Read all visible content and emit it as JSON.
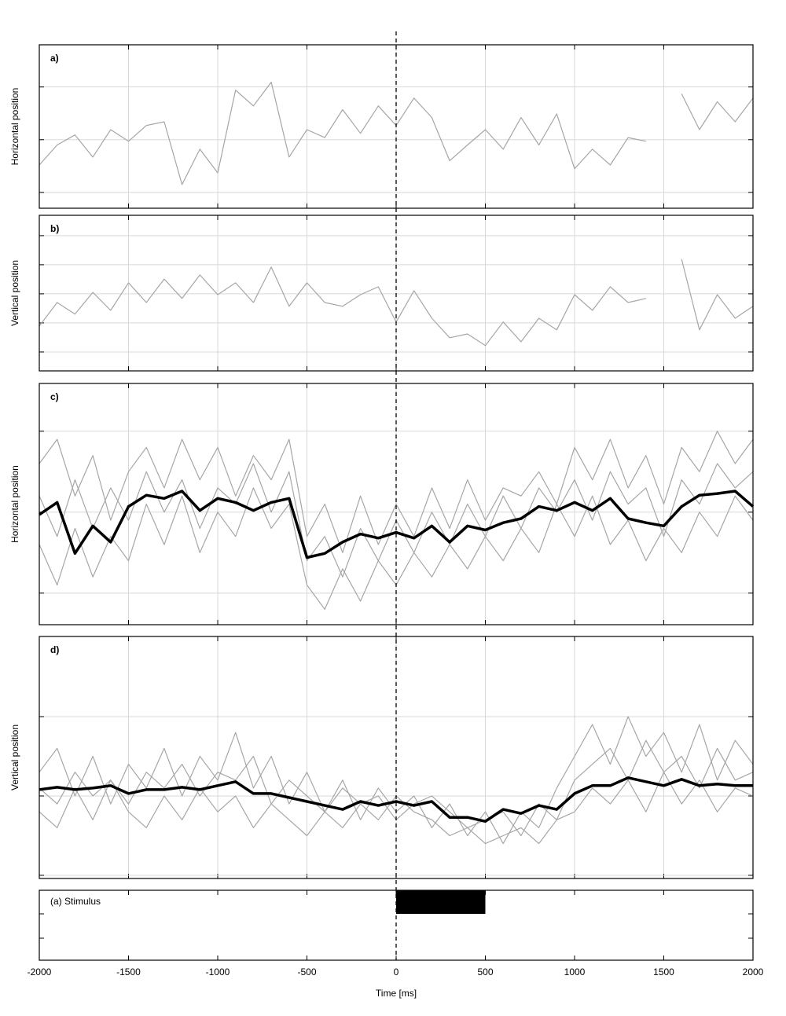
{
  "chart_data": [
    {
      "type": "line",
      "title": "a)",
      "y_label": "Horizontal position",
      "x": [
        -2000,
        -1900,
        -1800,
        -1700,
        -1600,
        -1500,
        -1400,
        -1300,
        -1200,
        -1100,
        -1000,
        -900,
        -800,
        -700,
        -600,
        -500,
        -400,
        -300,
        -200,
        -100,
        0,
        100,
        200,
        300,
        400,
        500,
        600,
        700,
        800,
        900,
        1000,
        1100,
        1200,
        1300,
        1400,
        1500,
        1600,
        1700,
        1800,
        1900,
        2000
      ],
      "series": [
        {
          "color": "#a6a6a6",
          "line_width": 1.2,
          "values": [
            -0.48,
            -0.1,
            0.09,
            -0.33,
            0.19,
            -0.03,
            0.27,
            0.34,
            -0.85,
            -0.18,
            -0.63,
            0.94,
            0.64,
            1.09,
            -0.33,
            0.19,
            0.04,
            0.57,
            0.12,
            0.64,
            0.27,
            0.79,
            0.42,
            -0.4,
            -0.1,
            0.19,
            -0.18,
            0.42,
            -0.1,
            0.49,
            -0.55,
            -0.18,
            -0.48,
            0.04,
            -0.03,
            null,
            0.87,
            0.19,
            0.72,
            0.34,
            0.79
          ]
        }
      ],
      "ylim": [
        -1.3,
        1.8
      ],
      "yticks": [
        -1,
        0,
        1
      ]
    },
    {
      "type": "line",
      "title": "b)",
      "y_label": "Vertical position",
      "x": [
        -2000,
        -1900,
        -1800,
        -1700,
        -1600,
        -1500,
        -1400,
        -1300,
        -1200,
        -1100,
        -1000,
        -900,
        -800,
        -700,
        -600,
        -500,
        -400,
        -300,
        -200,
        -100,
        0,
        100,
        200,
        300,
        400,
        500,
        600,
        700,
        800,
        900,
        1000,
        1100,
        1200,
        1300,
        1400,
        1500,
        1600,
        1700,
        1800,
        1900,
        2000
      ],
      "series": [
        {
          "color": "#a6a6a6",
          "line_width": 1.2,
          "values": [
            -1.11,
            -0.3,
            -0.7,
            0.05,
            -0.57,
            0.38,
            -0.3,
            0.51,
            -0.16,
            0.65,
            -0.03,
            0.38,
            -0.3,
            0.92,
            -0.43,
            0.38,
            -0.3,
            -0.43,
            -0.03,
            0.24,
            -0.97,
            0.11,
            -0.84,
            -1.51,
            -1.38,
            -1.78,
            -0.97,
            -1.65,
            -0.84,
            -1.24,
            -0.03,
            -0.57,
            0.24,
            -0.3,
            -0.16,
            null,
            1.19,
            -1.24,
            -0.03,
            -0.84,
            -0.43
          ]
        }
      ],
      "ylim": [
        -2.65,
        2.7
      ],
      "yticks": [
        -2,
        -1,
        0,
        1,
        2
      ]
    },
    {
      "type": "line",
      "title": "c)",
      "y_label": "Horizontal position",
      "x": [
        -2000,
        -1900,
        -1800,
        -1700,
        -1600,
        -1500,
        -1400,
        -1300,
        -1200,
        -1100,
        -1000,
        -900,
        -800,
        -700,
        -600,
        -500,
        -400,
        -300,
        -200,
        -100,
        0,
        100,
        200,
        300,
        400,
        500,
        600,
        700,
        800,
        900,
        1000,
        1100,
        1200,
        1300,
        1400,
        1500,
        1600,
        1700,
        1800,
        1900,
        2000
      ],
      "series": [
        {
          "color": "#a6a6a6",
          "line_width": 1.2,
          "values": [
            0.6,
            0.9,
            0.2,
            0.7,
            -0.1,
            0.5,
            0.8,
            0.3,
            0.9,
            0.4,
            0.8,
            0.2,
            0.7,
            0.4,
            0.9,
            -0.3,
            0.1,
            -0.5,
            0.2,
            -0.4,
            0.1,
            -0.3,
            0.3,
            -0.2,
            0.4,
            -0.1,
            0.3,
            0.2,
            0.5,
            0.1,
            0.8,
            0.4,
            0.9,
            0.3,
            0.7,
            0.1,
            0.8,
            0.5,
            1.0,
            0.6,
            0.9
          ]
        },
        {
          "color": "#a6a6a6",
          "line_width": 1.2,
          "values": [
            -0.4,
            -0.9,
            -0.2,
            -0.8,
            -0.3,
            -0.6,
            0.1,
            -0.4,
            0.2,
            -0.5,
            0.0,
            -0.3,
            0.3,
            -0.2,
            0.1,
            -0.9,
            -1.2,
            -0.7,
            -1.1,
            -0.6,
            -0.9,
            -0.5,
            -0.8,
            -0.4,
            -0.7,
            -0.3,
            -0.6,
            -0.2,
            -0.5,
            0.1,
            -0.3,
            0.2,
            -0.4,
            -0.1,
            -0.6,
            -0.2,
            -0.5,
            0.0,
            -0.3,
            0.2,
            -0.1
          ]
        },
        {
          "color": "#a6a6a6",
          "line_width": 1.2,
          "values": [
            0.2,
            -0.3,
            0.4,
            -0.2,
            0.3,
            -0.1,
            0.5,
            0.0,
            0.4,
            -0.2,
            0.3,
            0.1,
            0.6,
            0.0,
            0.5,
            -0.6,
            -0.3,
            -0.8,
            -0.2,
            -0.6,
            -0.1,
            -0.5,
            0.0,
            -0.4,
            0.1,
            -0.3,
            0.2,
            -0.2,
            0.3,
            0.0,
            0.4,
            -0.1,
            0.5,
            0.1,
            0.3,
            -0.3,
            0.4,
            0.1,
            0.6,
            0.3,
            0.5
          ]
        },
        {
          "color": "#000000",
          "line_width": 3.5,
          "values": [
            -0.03,
            0.12,
            -0.51,
            -0.17,
            -0.37,
            0.07,
            0.21,
            0.17,
            0.26,
            0.02,
            0.17,
            0.12,
            0.02,
            0.12,
            0.17,
            -0.56,
            -0.51,
            -0.37,
            -0.27,
            -0.32,
            -0.25,
            -0.32,
            -0.17,
            -0.37,
            -0.17,
            -0.22,
            -0.13,
            -0.08,
            0.07,
            0.02,
            0.12,
            0.02,
            0.17,
            -0.08,
            -0.13,
            -0.17,
            0.07,
            0.21,
            0.23,
            0.26,
            0.07
          ]
        }
      ],
      "ylim": [
        -1.39,
        1.59
      ],
      "yticks": [
        -1,
        0,
        1
      ]
    },
    {
      "type": "line",
      "title": "d)",
      "y_label": "Vertical position",
      "x": [
        -2000,
        -1900,
        -1800,
        -1700,
        -1600,
        -1500,
        -1400,
        -1300,
        -1200,
        -1100,
        -1000,
        -900,
        -800,
        -700,
        -600,
        -500,
        -400,
        -300,
        -200,
        -100,
        0,
        100,
        200,
        300,
        400,
        500,
        600,
        700,
        800,
        900,
        1000,
        1100,
        1200,
        1300,
        1400,
        1500,
        1600,
        1700,
        1800,
        1900,
        2000
      ],
      "series": [
        {
          "color": "#a6a6a6",
          "line_width": 1.2,
          "values": [
            0.3,
            0.6,
            0.0,
            0.5,
            -0.1,
            0.4,
            0.1,
            0.6,
            0.0,
            0.5,
            0.2,
            0.8,
            0.1,
            0.5,
            -0.1,
            0.3,
            -0.2,
            0.2,
            -0.3,
            0.1,
            -0.2,
            0.0,
            -0.4,
            -0.1,
            -0.5,
            -0.2,
            -0.6,
            -0.2,
            -0.4,
            0.1,
            0.5,
            0.9,
            0.4,
            1.0,
            0.5,
            0.8,
            0.3,
            0.9,
            0.2,
            0.7,
            0.4
          ]
        },
        {
          "color": "#a6a6a6",
          "line_width": 1.2,
          "values": [
            -0.2,
            -0.4,
            0.1,
            -0.3,
            0.2,
            -0.2,
            -0.4,
            0.0,
            -0.3,
            0.1,
            -0.2,
            0.0,
            -0.4,
            -0.1,
            -0.3,
            -0.5,
            -0.2,
            -0.4,
            -0.1,
            -0.3,
            0.0,
            -0.2,
            -0.3,
            -0.5,
            -0.4,
            -0.6,
            -0.5,
            -0.4,
            -0.6,
            -0.3,
            -0.2,
            0.1,
            -0.1,
            0.2,
            -0.2,
            0.3,
            -0.1,
            0.2,
            -0.2,
            0.1,
            0.0
          ]
        },
        {
          "color": "#a6a6a6",
          "line_width": 1.2,
          "values": [
            0.1,
            -0.1,
            0.3,
            0.0,
            0.2,
            -0.1,
            0.3,
            0.1,
            0.4,
            0.0,
            0.3,
            0.2,
            0.5,
            -0.1,
            0.2,
            0.0,
            -0.2,
            0.1,
            -0.1,
            0.0,
            -0.3,
            -0.1,
            0.0,
            -0.2,
            -0.4,
            -0.3,
            -0.2,
            -0.5,
            -0.1,
            -0.3,
            0.2,
            0.4,
            0.6,
            0.2,
            0.7,
            0.3,
            0.5,
            0.1,
            0.6,
            0.2,
            0.3
          ]
        },
        {
          "color": "#000000",
          "line_width": 3.5,
          "values": [
            0.08,
            0.11,
            0.08,
            0.1,
            0.13,
            0.03,
            0.08,
            0.08,
            0.11,
            0.08,
            0.13,
            0.18,
            0.03,
            0.03,
            -0.02,
            -0.07,
            -0.12,
            -0.17,
            -0.07,
            -0.12,
            -0.07,
            -0.12,
            -0.07,
            -0.27,
            -0.27,
            -0.32,
            -0.17,
            -0.22,
            -0.12,
            -0.17,
            0.03,
            0.13,
            0.13,
            0.23,
            0.18,
            0.13,
            0.21,
            0.13,
            0.15,
            0.13,
            0.13
          ]
        }
      ],
      "ylim": [
        -1.04,
        2.01
      ],
      "yticks": [
        -1,
        0,
        1
      ]
    },
    {
      "type": "interval",
      "label": "(a) Stimulus",
      "start": 0,
      "end": 500,
      "color": "#000000",
      "x_label": "Time [ms]",
      "xlim": [
        -2000,
        2000
      ],
      "xticks": [
        -2000,
        -1500,
        -1000,
        -500,
        0,
        500,
        1000,
        1500,
        2000
      ]
    }
  ]
}
